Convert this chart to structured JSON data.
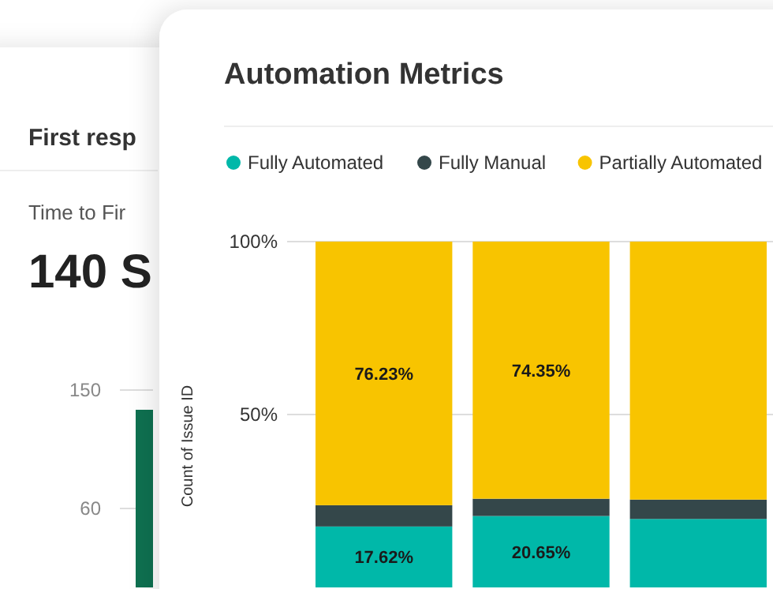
{
  "chart_data": [
    {
      "type": "bar",
      "title": "First resp",
      "subtitle": "Time to Fir",
      "annotations": [
        "140 S"
      ],
      "categories": [
        null
      ],
      "values": [
        135
      ],
      "color": "#0e7050",
      "ylim": [
        0,
        150
      ],
      "yticks": [
        60,
        150
      ],
      "grid": "y"
    },
    {
      "type": "bar",
      "title": "Automation Metrics",
      "ylabel": "Count of Issue ID",
      "categories": [
        null,
        null,
        null
      ],
      "stacked": true,
      "legend": "top left",
      "grid": "y",
      "ylim": [
        0,
        100
      ],
      "yticks": [
        {
          "value": 50,
          "label": "50%"
        },
        {
          "value": 100,
          "label": "100%"
        }
      ],
      "series": [
        {
          "name": "Fully Automated",
          "color": "#00b8a9",
          "values": [
            17.62,
            20.65,
            19.8
          ],
          "value_labels": [
            "17.62%",
            "20.65%",
            null
          ]
        },
        {
          "name": "Fully Manual",
          "color": "#34474a",
          "values": [
            6.15,
            5.0,
            5.6
          ]
        },
        {
          "name": "Partially Automated",
          "color": "#f8c400",
          "values": [
            76.23,
            74.35,
            74.6
          ],
          "value_labels": [
            "76.23%",
            "74.35%",
            null
          ]
        }
      ]
    }
  ]
}
